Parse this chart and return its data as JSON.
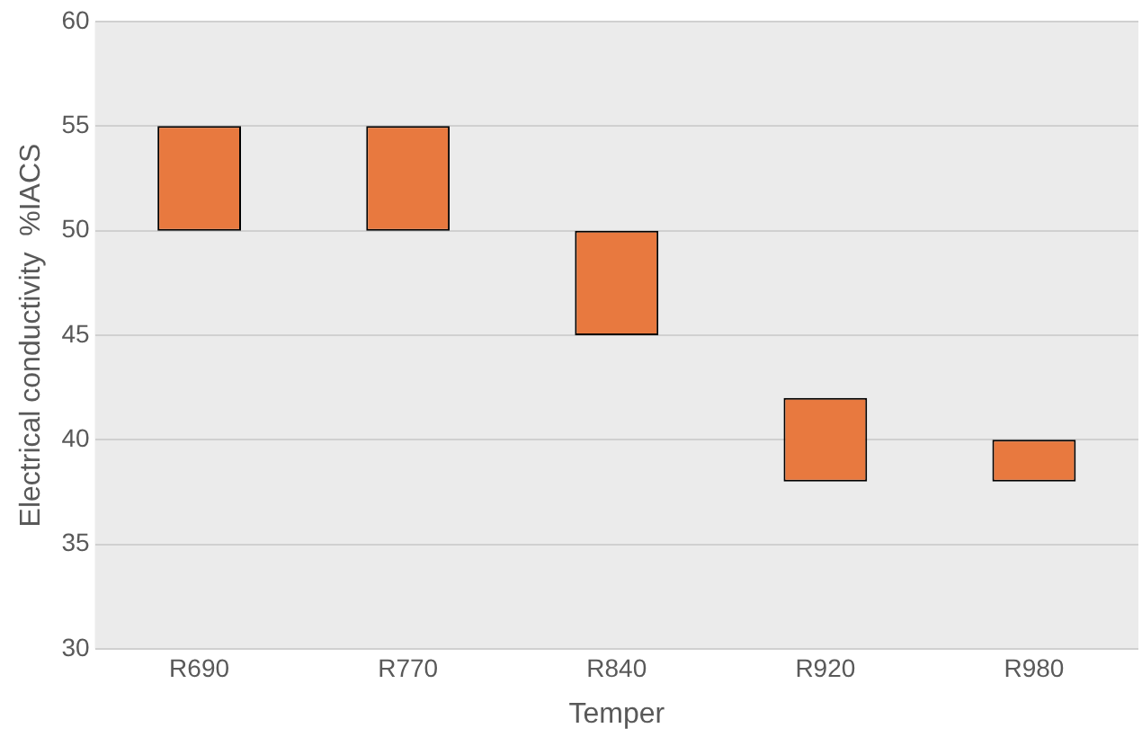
{
  "chart_data": {
    "type": "bar",
    "xlabel": "Temper",
    "ylabel": "Electrical conductivity  %IACS",
    "categories": [
      "R690",
      "R770",
      "R840",
      "R920",
      "R980"
    ],
    "base": [
      50,
      50,
      45,
      38,
      38
    ],
    "values": [
      5,
      5,
      5,
      4,
      2
    ],
    "color": "#e8793f",
    "ylim": [
      30,
      60
    ],
    "yticks": [
      30,
      35,
      40,
      45,
      50,
      55,
      60
    ],
    "grid": "y",
    "legend": false
  }
}
